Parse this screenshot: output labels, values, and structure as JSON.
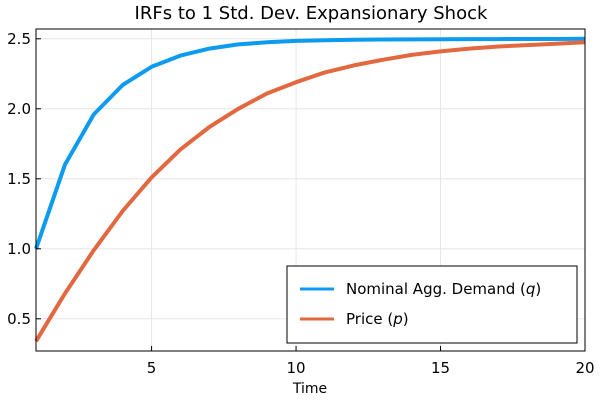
{
  "chart_data": {
    "type": "line",
    "title": "IRFs to 1 Std. Dev. Expansionary Shock",
    "xlabel": "Time",
    "ylabel": "",
    "xlim": [
      1,
      20
    ],
    "ylim": [
      0.27,
      2.57
    ],
    "xticks": [
      5,
      10,
      15,
      20
    ],
    "yticks": [
      0.5,
      1.0,
      1.5,
      2.0,
      2.5
    ],
    "xtick_labels": [
      "5",
      "10",
      "15",
      "20"
    ],
    "ytick_labels": [
      "0.5",
      "1.0",
      "1.5",
      "2.0",
      "2.5"
    ],
    "grid": true,
    "legend_position": "bottom-right",
    "x": [
      1,
      2,
      3,
      4,
      5,
      6,
      7,
      8,
      9,
      10,
      11,
      12,
      13,
      14,
      15,
      16,
      17,
      18,
      19,
      20
    ],
    "series": [
      {
        "name": "Nominal Agg. Demand (q)",
        "label_main": "Nominal Agg. Demand (",
        "label_var": "q",
        "label_close": ")",
        "color": "#0d9bf0",
        "values": [
          1.0,
          1.6,
          1.96,
          2.17,
          2.3,
          2.38,
          2.43,
          2.46,
          2.475,
          2.485,
          2.49,
          2.493,
          2.495,
          2.496,
          2.497,
          2.498,
          2.498,
          2.499,
          2.499,
          2.5
        ]
      },
      {
        "name": "Price (p)",
        "label_main": "Price (",
        "label_var": "p",
        "label_close": ")",
        "color": "#e2683f",
        "values": [
          0.34,
          0.68,
          0.99,
          1.27,
          1.51,
          1.71,
          1.87,
          2.0,
          2.11,
          2.19,
          2.26,
          2.31,
          2.35,
          2.385,
          2.41,
          2.43,
          2.445,
          2.455,
          2.465,
          2.475
        ]
      }
    ]
  }
}
